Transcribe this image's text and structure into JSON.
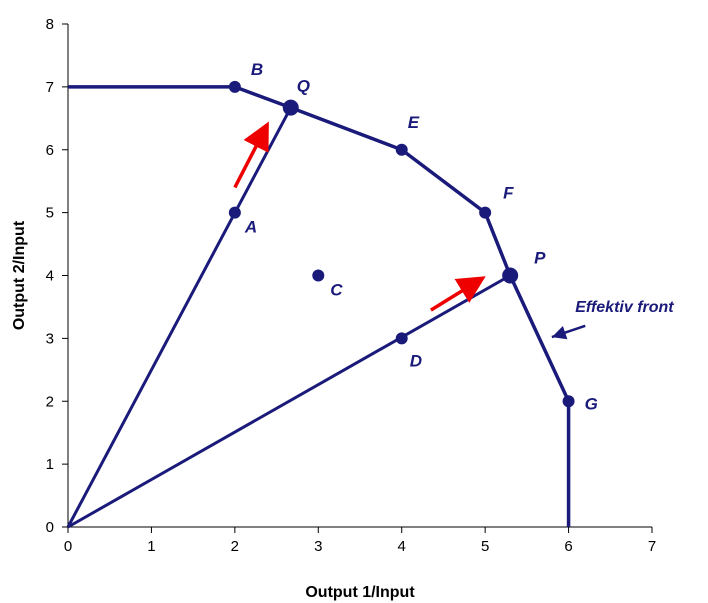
{
  "chart_data": {
    "type": "line",
    "title": "",
    "xlabel": "Output 1/Input",
    "ylabel": "Output 2/Input",
    "xlim": [
      0,
      7
    ],
    "ylim": [
      0,
      8
    ],
    "xticks": [
      "0",
      "1",
      "2",
      "3",
      "4",
      "5",
      "6",
      "7"
    ],
    "yticks": [
      "0",
      "1",
      "2",
      "3",
      "4",
      "5",
      "6",
      "7",
      "8"
    ],
    "grid": false,
    "legend": "none",
    "colors": {
      "series": "#1a1a7a",
      "arrow": "#ee0000",
      "axis": "#000000"
    },
    "frontier": {
      "x": [
        0,
        2,
        2.67,
        4,
        5,
        5.3,
        6,
        6
      ],
      "y": [
        7,
        7,
        6.67,
        6,
        5,
        4,
        2,
        0
      ]
    },
    "rays": [
      {
        "x": [
          0,
          2.67
        ],
        "y": [
          0,
          6.67
        ]
      },
      {
        "x": [
          0,
          5.3
        ],
        "y": [
          0,
          4
        ]
      }
    ],
    "points": [
      {
        "label": "A",
        "x": 2,
        "y": 5
      },
      {
        "label": "B",
        "x": 2,
        "y": 7
      },
      {
        "label": "C",
        "x": 3,
        "y": 4
      },
      {
        "label": "D",
        "x": 4,
        "y": 3
      },
      {
        "label": "E",
        "x": 4,
        "y": 6
      },
      {
        "label": "F",
        "x": 5,
        "y": 5
      },
      {
        "label": "G",
        "x": 6,
        "y": 2
      },
      {
        "label": "P",
        "x": 5.3,
        "y": 4
      },
      {
        "label": "Q",
        "x": 2.67,
        "y": 6.67
      }
    ],
    "projection_arrows": [
      {
        "from": [
          2,
          5.4
        ],
        "to": [
          2.35,
          6.3
        ]
      },
      {
        "from": [
          4.35,
          3.45
        ],
        "to": [
          4.9,
          3.9
        ]
      }
    ],
    "annotation": {
      "text": "Effektiv front",
      "text_at": [
        6.08,
        3.42
      ],
      "arrow_from": [
        6.2,
        3.2
      ],
      "arrow_to": [
        5.8,
        3.02
      ]
    }
  }
}
